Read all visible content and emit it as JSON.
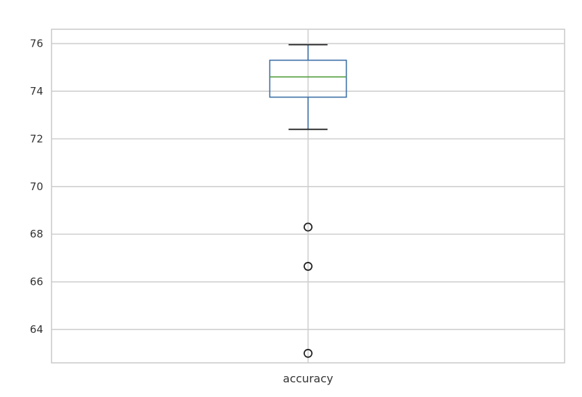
{
  "chart_data": {
    "type": "box",
    "title": "",
    "xlabel": "",
    "ylabel": "",
    "categories": [
      "accuracy"
    ],
    "boxes": [
      {
        "category": "accuracy",
        "whisker_low": 72.4,
        "q1": 73.75,
        "median": 74.6,
        "q3": 75.3,
        "whisker_high": 75.95,
        "outliers": [
          68.3,
          66.65,
          63.0
        ]
      }
    ],
    "ylim": [
      62.6,
      76.6
    ],
    "yticks": [
      64,
      66,
      68,
      70,
      72,
      74,
      76
    ],
    "grid": true,
    "colors": {
      "box": "#3a6ea5",
      "median": "#4d9b3a",
      "whisker_cap": "#222222",
      "outlier": "#222222",
      "grid": "#cfcfcf",
      "frame": "#cccccc"
    }
  }
}
